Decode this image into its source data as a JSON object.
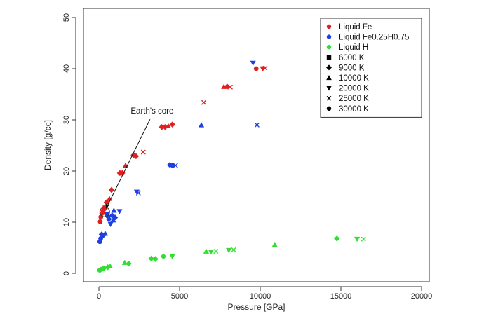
{
  "chart_data": {
    "type": "scatter",
    "xlabel": "Pressure [GPa]",
    "ylabel": "Density [g/cc]",
    "xlim": [
      0,
      20000
    ],
    "ylim": [
      0,
      50
    ],
    "xticks": [
      "0",
      "5000",
      "10000",
      "15000",
      "20000"
    ],
    "yticks": [
      "0",
      "10",
      "20",
      "30",
      "40",
      "50"
    ],
    "legend_position": "top-right",
    "legend_entries": [
      {
        "label": "Liquid Fe",
        "marker": "circle",
        "color": "#e02020"
      },
      {
        "label": "Liquid Fe0.25H0.75",
        "marker": "circle",
        "color": "#1f3fe0"
      },
      {
        "label": "Liquid H",
        "marker": "circle",
        "color": "#33dd33"
      },
      {
        "label": "6000 K",
        "marker": "square",
        "color": "#000000"
      },
      {
        "label": "9000 K",
        "marker": "diamond",
        "color": "#000000"
      },
      {
        "label": "10000 K",
        "marker": "triangle-up",
        "color": "#000000"
      },
      {
        "label": "20000 K",
        "marker": "triangle-down",
        "color": "#000000"
      },
      {
        "label": "25000 K",
        "marker": "x",
        "color": "#000000"
      },
      {
        "label": "30000 K",
        "marker": "circle",
        "color": "#000000"
      }
    ],
    "series": [
      {
        "name": "Liquid Fe",
        "color": "#e02020",
        "points": [
          {
            "x": 80,
            "y": 10.1,
            "m": "circle"
          },
          {
            "x": 120,
            "y": 11.0,
            "m": "circle"
          },
          {
            "x": 180,
            "y": 11.7,
            "m": "circle"
          },
          {
            "x": 260,
            "y": 12.3,
            "m": "diamond"
          },
          {
            "x": 320,
            "y": 11.9,
            "m": "triangle-up"
          },
          {
            "x": 380,
            "y": 12.8,
            "m": "square"
          },
          {
            "x": 480,
            "y": 13.9,
            "m": "diamond"
          },
          {
            "x": 650,
            "y": 14.6,
            "m": "triangle-up"
          },
          {
            "x": 780,
            "y": 16.3,
            "m": "diamond"
          },
          {
            "x": 1300,
            "y": 19.6,
            "m": "diamond"
          },
          {
            "x": 1450,
            "y": 19.6,
            "m": "diamond"
          },
          {
            "x": 1650,
            "y": 21.1,
            "m": "triangle-up"
          },
          {
            "x": 2150,
            "y": 23.1,
            "m": "diamond"
          },
          {
            "x": 2300,
            "y": 22.9,
            "m": "diamond"
          },
          {
            "x": 2750,
            "y": 23.7,
            "m": "x"
          },
          {
            "x": 3900,
            "y": 28.6,
            "m": "diamond"
          },
          {
            "x": 4100,
            "y": 28.6,
            "m": "diamond"
          },
          {
            "x": 4300,
            "y": 28.8,
            "m": "triangle-up"
          },
          {
            "x": 4550,
            "y": 29.1,
            "m": "diamond"
          },
          {
            "x": 6500,
            "y": 33.4,
            "m": "x"
          },
          {
            "x": 7750,
            "y": 36.5,
            "m": "triangle-up"
          },
          {
            "x": 7950,
            "y": 36.5,
            "m": "diamond"
          },
          {
            "x": 8150,
            "y": 36.4,
            "m": "x"
          },
          {
            "x": 9750,
            "y": 40.0,
            "m": "circle"
          },
          {
            "x": 10150,
            "y": 40.0,
            "m": "triangle-down"
          },
          {
            "x": 10300,
            "y": 40.1,
            "m": "x"
          }
        ]
      },
      {
        "name": "Liquid Fe0.25H0.75",
        "color": "#1f3fe0",
        "points": [
          {
            "x": 60,
            "y": 6.2,
            "m": "circle"
          },
          {
            "x": 110,
            "y": 6.8,
            "m": "circle"
          },
          {
            "x": 170,
            "y": 7.6,
            "m": "diamond"
          },
          {
            "x": 260,
            "y": 7.4,
            "m": "diamond"
          },
          {
            "x": 390,
            "y": 7.8,
            "m": "triangle-up"
          },
          {
            "x": 500,
            "y": 11.6,
            "m": "square"
          },
          {
            "x": 560,
            "y": 11.1,
            "m": "diamond"
          },
          {
            "x": 620,
            "y": 10.6,
            "m": "diamond"
          },
          {
            "x": 720,
            "y": 9.6,
            "m": "triangle-down"
          },
          {
            "x": 820,
            "y": 11.3,
            "m": "diamond"
          },
          {
            "x": 880,
            "y": 10.4,
            "m": "triangle-up"
          },
          {
            "x": 930,
            "y": 12.3,
            "m": "triangle-up"
          },
          {
            "x": 1000,
            "y": 10.9,
            "m": "diamond"
          },
          {
            "x": 1280,
            "y": 12.1,
            "m": "triangle-down"
          },
          {
            "x": 2350,
            "y": 15.9,
            "m": "triangle-down"
          },
          {
            "x": 2450,
            "y": 15.7,
            "m": "x"
          },
          {
            "x": 4400,
            "y": 21.2,
            "m": "diamond"
          },
          {
            "x": 4550,
            "y": 21.1,
            "m": "diamond"
          },
          {
            "x": 4750,
            "y": 21.1,
            "m": "x"
          },
          {
            "x": 6350,
            "y": 29.0,
            "m": "triangle-up"
          },
          {
            "x": 9550,
            "y": 41.1,
            "m": "triangle-down"
          },
          {
            "x": 9800,
            "y": 29.0,
            "m": "x"
          }
        ]
      },
      {
        "name": "Liquid H",
        "color": "#33dd33",
        "points": [
          {
            "x": 50,
            "y": 0.6,
            "m": "circle"
          },
          {
            "x": 150,
            "y": 0.8,
            "m": "circle"
          },
          {
            "x": 300,
            "y": 1.0,
            "m": "diamond"
          },
          {
            "x": 550,
            "y": 1.2,
            "m": "diamond"
          },
          {
            "x": 700,
            "y": 1.4,
            "m": "triangle-up"
          },
          {
            "x": 1600,
            "y": 2.1,
            "m": "triangle-up"
          },
          {
            "x": 1850,
            "y": 1.9,
            "m": "diamond"
          },
          {
            "x": 3250,
            "y": 2.9,
            "m": "diamond"
          },
          {
            "x": 3500,
            "y": 2.8,
            "m": "diamond"
          },
          {
            "x": 4000,
            "y": 3.3,
            "m": "diamond"
          },
          {
            "x": 4550,
            "y": 3.3,
            "m": "triangle-down"
          },
          {
            "x": 6650,
            "y": 4.3,
            "m": "triangle-up"
          },
          {
            "x": 6950,
            "y": 4.2,
            "m": "triangle-down"
          },
          {
            "x": 7250,
            "y": 4.3,
            "m": "x"
          },
          {
            "x": 8050,
            "y": 4.5,
            "m": "triangle-down"
          },
          {
            "x": 8350,
            "y": 4.6,
            "m": "x"
          },
          {
            "x": 10900,
            "y": 5.6,
            "m": "triangle-up"
          },
          {
            "x": 14750,
            "y": 6.8,
            "m": "diamond"
          },
          {
            "x": 16000,
            "y": 6.7,
            "m": "triangle-down"
          },
          {
            "x": 16400,
            "y": 6.7,
            "m": "x"
          }
        ]
      }
    ],
    "annotations": [
      {
        "text": "Earth's core",
        "target_x": 360,
        "target_y": 12.0,
        "label_x": 3300,
        "label_y": 31.2
      }
    ]
  }
}
